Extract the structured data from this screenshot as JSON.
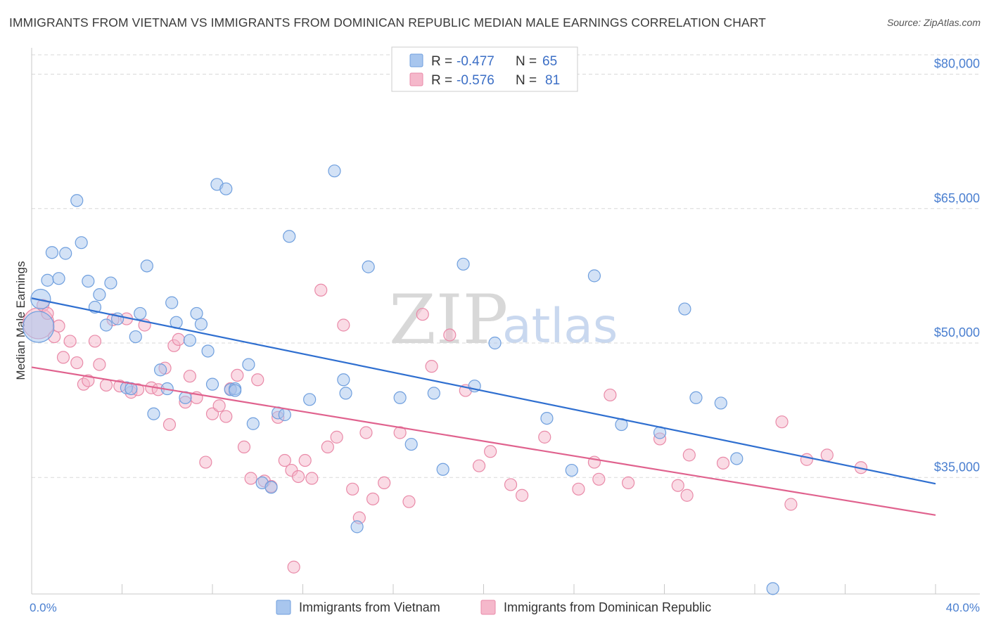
{
  "header": {
    "title": "IMMIGRANTS FROM VIETNAM VS IMMIGRANTS FROM DOMINICAN REPUBLIC MEDIAN MALE EARNINGS CORRELATION CHART",
    "source": "Source: ZipAtlas.com"
  },
  "watermark": {
    "zip": "ZIP",
    "atlas": "atlas"
  },
  "colors": {
    "blue_fill": "#a8c6ee",
    "blue_stroke": "#6f9fde",
    "blue_line": "#2f6fd0",
    "pink_fill": "#f5b8cb",
    "pink_stroke": "#e98aa8",
    "pink_line": "#e0628e",
    "grid": "#d9d9d9",
    "axis_text": "#4a7fd0"
  },
  "legend": {
    "rows": [
      {
        "r_label": "R =",
        "r_value": "-0.477",
        "n_label": "N =",
        "n_value": "65"
      },
      {
        "r_label": "R =",
        "r_value": "-0.576",
        "n_label": "N =",
        "n_value": "81"
      }
    ]
  },
  "chart_data": {
    "type": "scatter",
    "title": "IMMIGRANTS FROM VIETNAM VS IMMIGRANTS FROM DOMINICAN REPUBLIC MEDIAN MALE EARNINGS CORRELATION CHART",
    "xlabel": "",
    "ylabel": "Median Male Earnings",
    "xlim": [
      0,
      40
    ],
    "ylim": [
      22000,
      82000
    ],
    "x_tick_labels": [
      "0.0%",
      "40.0%"
    ],
    "y_ticks": [
      35000,
      50000,
      65000,
      80000
    ],
    "y_tick_labels": [
      "$35,000",
      "$50,000",
      "$65,000",
      "$80,000"
    ],
    "legend_position": "bottom-center",
    "series": [
      {
        "name": "Immigrants from Vietnam",
        "color": "#a8c6ee",
        "r": -0.477,
        "n": 65,
        "trend": {
          "x": [
            0,
            40
          ],
          "y": [
            55000,
            34300
          ]
        },
        "points": [
          [
            0.3,
            51800
          ],
          [
            0.4,
            54900
          ],
          [
            0.7,
            57000
          ],
          [
            0.9,
            60100
          ],
          [
            1.2,
            57200
          ],
          [
            1.5,
            60000
          ],
          [
            2.0,
            65900
          ],
          [
            2.2,
            61200
          ],
          [
            2.5,
            56900
          ],
          [
            2.8,
            54000
          ],
          [
            3.0,
            55400
          ],
          [
            3.3,
            52000
          ],
          [
            3.5,
            56700
          ],
          [
            3.8,
            52700
          ],
          [
            4.2,
            45000
          ],
          [
            4.4,
            44900
          ],
          [
            4.6,
            50700
          ],
          [
            4.8,
            53300
          ],
          [
            5.1,
            58600
          ],
          [
            5.4,
            42100
          ],
          [
            5.7,
            47000
          ],
          [
            6.0,
            44900
          ],
          [
            6.2,
            54500
          ],
          [
            6.4,
            52300
          ],
          [
            6.8,
            43900
          ],
          [
            7.0,
            50300
          ],
          [
            7.3,
            53300
          ],
          [
            7.5,
            52100
          ],
          [
            7.8,
            49100
          ],
          [
            8.0,
            45400
          ],
          [
            8.2,
            67700
          ],
          [
            8.6,
            67200
          ],
          [
            8.8,
            44800
          ],
          [
            9.0,
            44900
          ],
          [
            9.6,
            47600
          ],
          [
            9.8,
            41000
          ],
          [
            10.2,
            34400
          ],
          [
            10.6,
            33900
          ],
          [
            10.9,
            42200
          ],
          [
            11.2,
            42000
          ],
          [
            11.4,
            61900
          ],
          [
            12.3,
            43700
          ],
          [
            13.4,
            69200
          ],
          [
            13.8,
            45900
          ],
          [
            13.9,
            44400
          ],
          [
            14.4,
            29500
          ],
          [
            14.9,
            58500
          ],
          [
            16.3,
            43900
          ],
          [
            16.8,
            38700
          ],
          [
            17.8,
            44400
          ],
          [
            18.2,
            35900
          ],
          [
            19.1,
            58800
          ],
          [
            19.6,
            45200
          ],
          [
            20.5,
            50000
          ],
          [
            22.8,
            41600
          ],
          [
            23.9,
            35800
          ],
          [
            24.9,
            57500
          ],
          [
            26.1,
            40900
          ],
          [
            27.8,
            40000
          ],
          [
            28.9,
            53800
          ],
          [
            29.4,
            43900
          ],
          [
            30.5,
            43300
          ],
          [
            31.2,
            37100
          ],
          [
            32.8,
            22600
          ],
          [
            9.0,
            44700
          ]
        ]
      },
      {
        "name": "Immigrants from Dominican Republic",
        "color": "#f5b8cb",
        "r": -0.576,
        "n": 81,
        "trend": {
          "x": [
            0,
            40
          ],
          "y": [
            47300,
            30800
          ]
        },
        "points": [
          [
            0.3,
            52200
          ],
          [
            0.5,
            54200
          ],
          [
            0.7,
            53300
          ],
          [
            1.0,
            50700
          ],
          [
            1.2,
            51900
          ],
          [
            1.4,
            48400
          ],
          [
            1.7,
            50200
          ],
          [
            2.0,
            47800
          ],
          [
            2.3,
            45400
          ],
          [
            2.5,
            45800
          ],
          [
            2.8,
            50200
          ],
          [
            3.0,
            47600
          ],
          [
            3.3,
            45300
          ],
          [
            3.6,
            52600
          ],
          [
            3.9,
            45200
          ],
          [
            4.2,
            52700
          ],
          [
            4.4,
            44500
          ],
          [
            4.7,
            44800
          ],
          [
            5.0,
            52000
          ],
          [
            5.3,
            45000
          ],
          [
            5.6,
            44800
          ],
          [
            5.9,
            47200
          ],
          [
            6.1,
            40900
          ],
          [
            6.3,
            49700
          ],
          [
            6.5,
            50400
          ],
          [
            6.8,
            43400
          ],
          [
            7.0,
            46300
          ],
          [
            7.3,
            43900
          ],
          [
            7.7,
            36700
          ],
          [
            8.0,
            42100
          ],
          [
            8.3,
            43000
          ],
          [
            8.6,
            41800
          ],
          [
            8.8,
            44900
          ],
          [
            9.1,
            46400
          ],
          [
            9.4,
            38400
          ],
          [
            9.7,
            34900
          ],
          [
            10.0,
            45900
          ],
          [
            10.3,
            34600
          ],
          [
            10.6,
            34000
          ],
          [
            10.9,
            41700
          ],
          [
            11.2,
            36900
          ],
          [
            11.5,
            35800
          ],
          [
            11.8,
            35100
          ],
          [
            12.1,
            36900
          ],
          [
            12.4,
            34900
          ],
          [
            12.8,
            55900
          ],
          [
            13.1,
            38400
          ],
          [
            13.5,
            39500
          ],
          [
            13.8,
            52000
          ],
          [
            14.2,
            33700
          ],
          [
            14.5,
            30500
          ],
          [
            14.8,
            40000
          ],
          [
            15.1,
            32600
          ],
          [
            15.6,
            34400
          ],
          [
            16.3,
            40000
          ],
          [
            16.7,
            32300
          ],
          [
            17.3,
            53200
          ],
          [
            17.7,
            47400
          ],
          [
            18.5,
            50900
          ],
          [
            19.2,
            44700
          ],
          [
            19.8,
            36300
          ],
          [
            20.3,
            37900
          ],
          [
            21.2,
            34200
          ],
          [
            21.7,
            33000
          ],
          [
            22.7,
            39500
          ],
          [
            24.2,
            33700
          ],
          [
            24.9,
            36700
          ],
          [
            25.1,
            34800
          ],
          [
            25.6,
            44200
          ],
          [
            26.4,
            34400
          ],
          [
            27.8,
            39300
          ],
          [
            28.6,
            34100
          ],
          [
            29.1,
            37500
          ],
          [
            30.6,
            36600
          ],
          [
            33.2,
            41200
          ],
          [
            33.6,
            32000
          ],
          [
            34.3,
            37000
          ],
          [
            35.2,
            37500
          ],
          [
            36.7,
            36100
          ],
          [
            11.6,
            25000
          ],
          [
            29.0,
            33000
          ]
        ]
      }
    ]
  }
}
